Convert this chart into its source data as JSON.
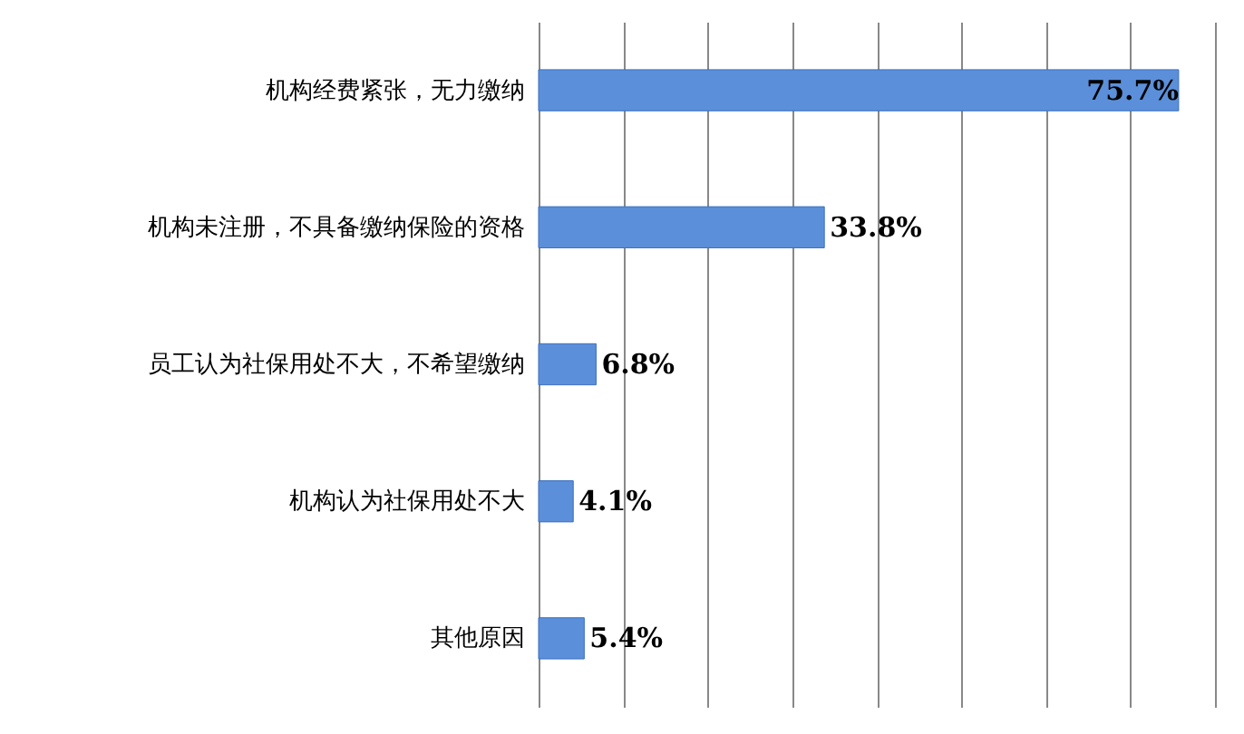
{
  "chart_data": {
    "type": "bar",
    "orientation": "horizontal",
    "categories": [
      "机构经费紧张，无力缴纳",
      "机构未注册，不具备缴纳保险的资格",
      "员工认为社保用处不大，不希望缴纳",
      "机构认为社保用处不大",
      "其他原因"
    ],
    "values": [
      75.7,
      33.8,
      6.8,
      4.1,
      5.4
    ],
    "value_labels": [
      "75.7%",
      "33.8%",
      "6.8%",
      "4.1%",
      "5.4%"
    ],
    "color": "#5b8fd9",
    "xlim": [
      0,
      80
    ],
    "xticks": [
      {
        "value": 0,
        "label": null
      },
      {
        "value": 10,
        "label": null
      },
      {
        "value": 20,
        "label": null
      },
      {
        "value": 30,
        "label": null
      },
      {
        "value": 40,
        "label": null
      },
      {
        "value": 50,
        "label": null
      },
      {
        "value": 60,
        "label": null
      },
      {
        "value": 70,
        "label": null
      },
      {
        "value": 80,
        "label": null
      }
    ],
    "grid": "x",
    "tick_labels": "y"
  }
}
